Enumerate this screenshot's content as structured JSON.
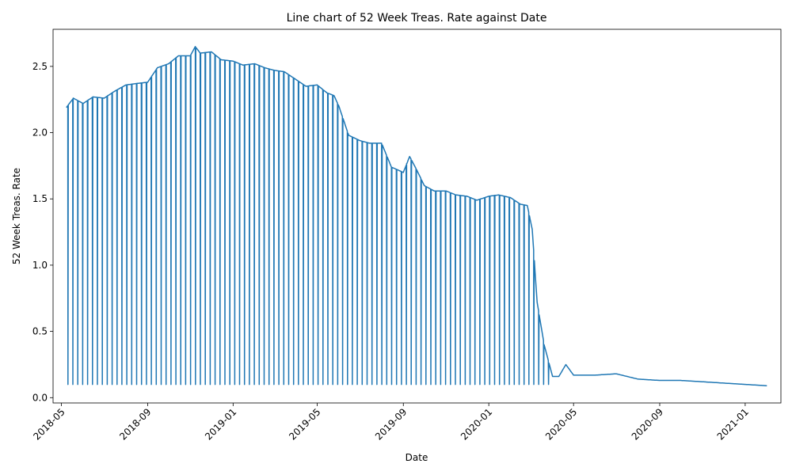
{
  "chart_data": {
    "type": "line",
    "title": "Line chart of 52 Week Treas. Rate against Date",
    "xlabel": "Date",
    "ylabel": "52 Week Treas. Rate",
    "x_tick_labels": [
      "2018-05",
      "2018-09",
      "2019-01",
      "2019-05",
      "2019-09",
      "2020-01",
      "2020-05",
      "2020-09",
      "2021-01"
    ],
    "x_ticks": [
      "2018-05-01",
      "2018-09-01",
      "2019-01-01",
      "2019-05-01",
      "2019-09-01",
      "2020-01-01",
      "2020-05-01",
      "2020-09-01",
      "2021-01-01"
    ],
    "y_tick_labels": [
      "0.0",
      "0.5",
      "1.0",
      "1.5",
      "2.0",
      "2.5"
    ],
    "y_ticks": [
      0.0,
      0.5,
      1.0,
      1.5,
      2.0,
      2.5
    ],
    "xlim": [
      "2018-04-19",
      "2021-02-21"
    ],
    "ylim": [
      -0.04,
      2.78
    ],
    "grid": false,
    "line_color": "#1f77b4",
    "series": [
      {
        "x": [
          "2018-05-08",
          "2018-05-18",
          "2018-06-01",
          "2018-06-15",
          "2018-07-01",
          "2018-07-15",
          "2018-08-01",
          "2018-08-15",
          "2018-09-01",
          "2018-09-15",
          "2018-10-01",
          "2018-10-15",
          "2018-11-01",
          "2018-11-08",
          "2018-11-15",
          "2018-12-01",
          "2018-12-15",
          "2019-01-01",
          "2019-01-15",
          "2019-02-01",
          "2019-02-15",
          "2019-03-01",
          "2019-03-15",
          "2019-04-01",
          "2019-04-15",
          "2019-05-01",
          "2019-05-15",
          "2019-05-25",
          "2019-06-01",
          "2019-06-15",
          "2019-07-01",
          "2019-07-15",
          "2019-08-01",
          "2019-08-15",
          "2019-09-01",
          "2019-09-10",
          "2019-09-20",
          "2019-10-01",
          "2019-10-15",
          "2019-11-01",
          "2019-11-15",
          "2019-12-01",
          "2019-12-15",
          "2020-01-01",
          "2020-01-15",
          "2020-02-01",
          "2020-02-15",
          "2020-02-25",
          "2020-03-03",
          "2020-03-10",
          "2020-03-20",
          "2020-04-01",
          "2020-04-10",
          "2020-04-20",
          "2020-05-01",
          "2020-06-01",
          "2020-07-01",
          "2020-08-01",
          "2020-09-01",
          "2020-10-01",
          "2020-11-01",
          "2020-12-01",
          "2021-01-01",
          "2021-02-01"
        ],
        "values": [
          2.19,
          2.26,
          2.22,
          2.27,
          2.26,
          2.31,
          2.36,
          2.37,
          2.38,
          2.49,
          2.52,
          2.58,
          2.58,
          2.65,
          2.6,
          2.61,
          2.55,
          2.54,
          2.51,
          2.52,
          2.49,
          2.47,
          2.46,
          2.4,
          2.35,
          2.36,
          2.3,
          2.28,
          2.2,
          1.98,
          1.94,
          1.92,
          1.92,
          1.74,
          1.7,
          1.82,
          1.72,
          1.6,
          1.56,
          1.56,
          1.53,
          1.52,
          1.49,
          1.52,
          1.53,
          1.51,
          1.46,
          1.45,
          1.27,
          0.72,
          0.4,
          0.16,
          0.16,
          0.25,
          0.17,
          0.17,
          0.18,
          0.14,
          0.13,
          0.13,
          0.12,
          0.11,
          0.1,
          0.09
        ]
      }
    ],
    "dips": {
      "low_value": 0.1,
      "start": "2018-05-10",
      "end": "2020-03-31",
      "interval_days": 7
    }
  }
}
